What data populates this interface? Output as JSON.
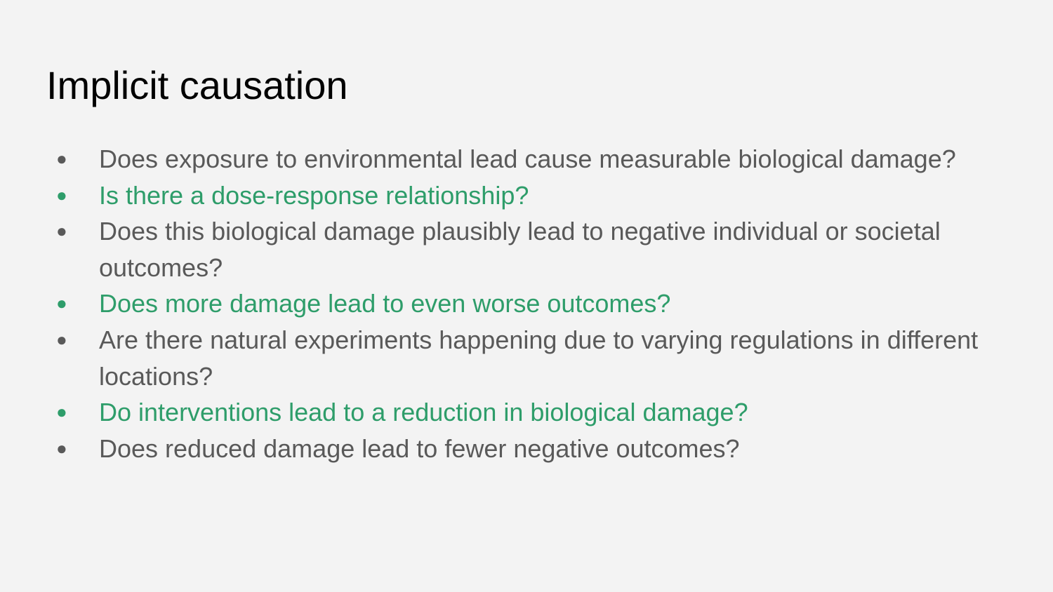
{
  "slide": {
    "title": "Implicit causation",
    "bullet_glyph": "●",
    "colors": {
      "background": "#f3f3f3",
      "title": "#000000",
      "text": "#595959",
      "accent": "#2e9d6a"
    },
    "bullets": [
      {
        "text": "Does exposure to environmental lead cause measurable biological damage?",
        "highlighted": false
      },
      {
        "text": "Is there a dose-response relationship?",
        "highlighted": true
      },
      {
        "text": "Does this biological damage plausibly lead to negative individual or societal outcomes?",
        "highlighted": false
      },
      {
        "text": "Does more damage lead to even worse outcomes?",
        "highlighted": true
      },
      {
        "text": "Are there natural experiments happening due to varying regulations in different locations?",
        "highlighted": false
      },
      {
        "text": "Do interventions lead to a reduction in biological damage?",
        "highlighted": true
      },
      {
        "text": "Does reduced damage lead to fewer negative outcomes?",
        "highlighted": false
      }
    ]
  }
}
